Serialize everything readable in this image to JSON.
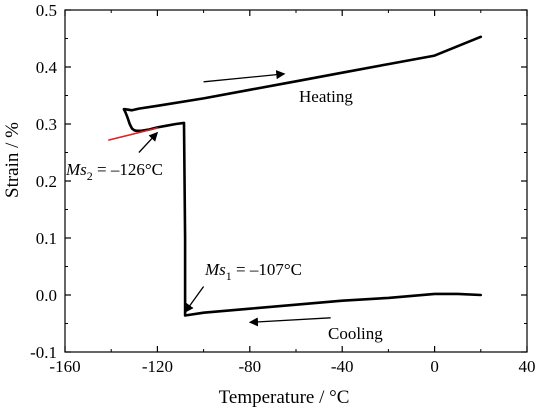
{
  "chart_data": {
    "type": "line",
    "xlabel": "Temperature / °C",
    "ylabel": "Strain / %",
    "xlim": [
      -160,
      40
    ],
    "ylim": [
      -0.1,
      0.5
    ],
    "xticks": [
      -160,
      -120,
      -80,
      -40,
      0,
      40
    ],
    "yticks": [
      -0.1,
      0.0,
      0.1,
      0.2,
      0.3,
      0.4,
      0.5
    ],
    "xtick_labels": [
      "-160",
      "-120",
      "-80",
      "-40",
      "0",
      "40"
    ],
    "ytick_labels": [
      "-0.1",
      "0.0",
      "0.1",
      "0.2",
      "0.3",
      "0.4",
      "0.5"
    ],
    "grid": false,
    "series": [
      {
        "color": "#000000",
        "x": [
          20,
          10,
          0,
          -20,
          -40,
          -60,
          -80,
          -100,
          -108,
          -108,
          -108.5,
          -112,
          -116,
          -120,
          -124,
          -127,
          -129,
          -130,
          -131,
          -132,
          -133,
          -134,
          -134.5,
          -134,
          -131,
          -128,
          -120,
          -100,
          -80,
          -60,
          -40,
          -20,
          0,
          20
        ],
        "y": [
          0.0,
          0.002,
          0.002,
          -0.005,
          -0.01,
          -0.017,
          -0.024,
          -0.031,
          -0.036,
          0.1,
          0.302,
          0.3,
          0.297,
          0.294,
          0.29,
          0.288,
          0.288,
          0.289,
          0.292,
          0.3,
          0.312,
          0.322,
          0.326,
          0.326,
          0.324,
          0.327,
          0.332,
          0.345,
          0.36,
          0.375,
          0.39,
          0.405,
          0.42,
          0.453
        ]
      },
      {
        "color": "#e02020",
        "x": [
          -141,
          -120
        ],
        "y": [
          0.272,
          0.293
        ]
      }
    ],
    "annotations": {
      "heating": "Heating",
      "cooling": "Cooling",
      "ms2_name": "Ms",
      "ms2_sub": "2",
      "ms2_value": " = –126°C",
      "ms1_name": "Ms",
      "ms1_sub": "1",
      "ms1_value": " = –107°C"
    },
    "arrows": [
      {
        "name": "heating-arrow",
        "x1": -100,
        "y1": 0.374,
        "x2": -65,
        "y2": 0.388
      },
      {
        "name": "cooling-arrow",
        "x1": -45,
        "y1": -0.04,
        "x2": -80,
        "y2": -0.048
      },
      {
        "name": "ms2-arrow",
        "x1": -128,
        "y1": 0.25,
        "x2": -120,
        "y2": 0.285
      },
      {
        "name": "ms1-arrow",
        "x1": -100,
        "y1": 0.015,
        "x2": -108,
        "y2": -0.03
      }
    ]
  }
}
